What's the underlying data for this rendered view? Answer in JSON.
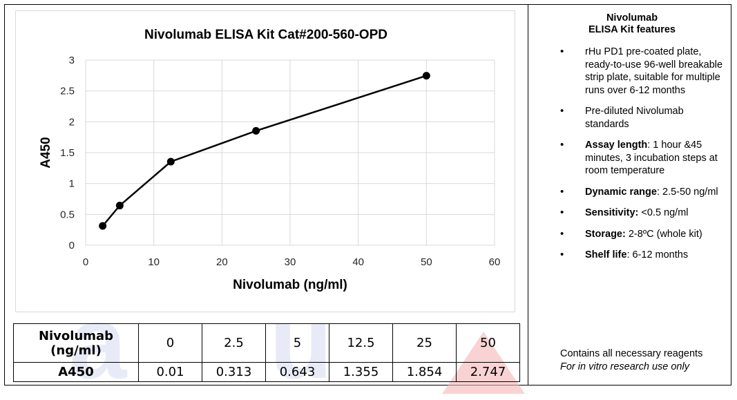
{
  "chart_data": {
    "type": "line",
    "title": "Nivolumab  ELISA Kit Cat#200-560-OPD",
    "xlabel": "Nivolumab  (ng/ml)",
    "ylabel": "A450",
    "x": [
      2.5,
      5,
      12.5,
      25,
      50
    ],
    "y": [
      0.313,
      0.643,
      1.355,
      1.854,
      2.747
    ],
    "xlim": [
      0,
      60
    ],
    "ylim": [
      0,
      3
    ],
    "xticks": [
      "0",
      "10",
      "20",
      "30",
      "40",
      "50",
      "60"
    ],
    "yticks": [
      "0",
      "0.5",
      "1",
      "1.5",
      "2",
      "2.5",
      "3"
    ],
    "grid": true,
    "color": "#000000"
  },
  "table": {
    "row1_header": [
      "Nivolumab",
      "(ng/ml)"
    ],
    "row2_header": "A450",
    "concentrations": [
      "0",
      "2.5",
      "5",
      "12.5",
      "25",
      "50"
    ],
    "absorbance": [
      "0.01",
      "0.313",
      "0.643",
      "1.355",
      "1.854",
      "2.747"
    ]
  },
  "features": {
    "title_line1": "Nivolumab",
    "title_line2": "ELISA Kit features",
    "items": [
      {
        "bold": "",
        "text": "rHu PD1 pre-coated plate, ready-to-use 96-well breakable strip plate, suitable for multiple runs over 6-12 months"
      },
      {
        "bold": "",
        "text": "Pre-diluted Nivolumab standards"
      },
      {
        "bold": "Assay length",
        "text": ": 1 hour &45 minutes, 3 incubation steps at room temperature"
      },
      {
        "bold": "Dynamic range",
        "text": ": 2.5-50 ng/ml"
      },
      {
        "bold": "Sensitivity:",
        "text": " <0.5 ng/ml"
      },
      {
        "bold": "Storage:",
        "text": " 2-8ºC (whole kit)"
      },
      {
        "bold": "Shelf life",
        "text": ":  6-12 months"
      }
    ],
    "bullet": "•"
  },
  "footer": {
    "line1": "Contains all necessary reagents",
    "line2": "For in vitro research use only"
  },
  "watermark": {
    "a": "a",
    "u": "u"
  }
}
